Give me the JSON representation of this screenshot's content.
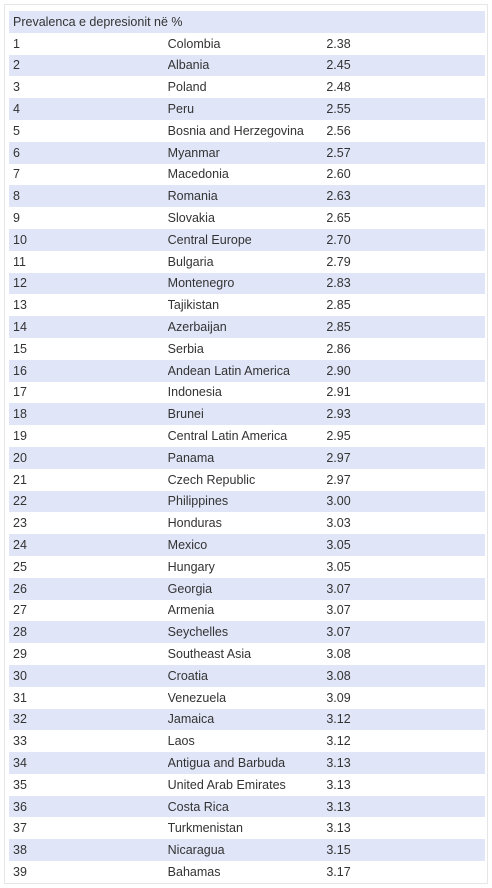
{
  "table": {
    "header": "Prevalenca e depresionit në %",
    "rows": [
      {
        "rank": "1",
        "country": "Colombia",
        "value": "2.38"
      },
      {
        "rank": "2",
        "country": "Albania",
        "value": "2.45"
      },
      {
        "rank": "3",
        "country": "Poland",
        "value": "2.48"
      },
      {
        "rank": "4",
        "country": "Peru",
        "value": "2.55"
      },
      {
        "rank": "5",
        "country": "Bosnia and Herzegovina",
        "value": "2.56"
      },
      {
        "rank": "6",
        "country": "Myanmar",
        "value": "2.57"
      },
      {
        "rank": "7",
        "country": "Macedonia",
        "value": "2.60"
      },
      {
        "rank": "8",
        "country": "Romania",
        "value": "2.63"
      },
      {
        "rank": "9",
        "country": "Slovakia",
        "value": "2.65"
      },
      {
        "rank": "10",
        "country": "Central Europe",
        "value": "2.70"
      },
      {
        "rank": "11",
        "country": "Bulgaria",
        "value": "2.79"
      },
      {
        "rank": "12",
        "country": "Montenegro",
        "value": "2.83"
      },
      {
        "rank": "13",
        "country": "Tajikistan",
        "value": "2.85"
      },
      {
        "rank": "14",
        "country": "Azerbaijan",
        "value": "2.85"
      },
      {
        "rank": "15",
        "country": "Serbia",
        "value": "2.86"
      },
      {
        "rank": "16",
        "country": "Andean Latin America",
        "value": "2.90"
      },
      {
        "rank": "17",
        "country": "Indonesia",
        "value": "2.91"
      },
      {
        "rank": "18",
        "country": "Brunei",
        "value": "2.93"
      },
      {
        "rank": "19",
        "country": "Central Latin America",
        "value": "2.95"
      },
      {
        "rank": "20",
        "country": "Panama",
        "value": "2.97"
      },
      {
        "rank": "21",
        "country": "Czech Republic",
        "value": "2.97"
      },
      {
        "rank": "22",
        "country": "Philippines",
        "value": "3.00"
      },
      {
        "rank": "23",
        "country": "Honduras",
        "value": "3.03"
      },
      {
        "rank": "24",
        "country": "Mexico",
        "value": "3.05"
      },
      {
        "rank": "25",
        "country": "Hungary",
        "value": "3.05"
      },
      {
        "rank": "26",
        "country": "Georgia",
        "value": "3.07"
      },
      {
        "rank": "27",
        "country": "Armenia",
        "value": "3.07"
      },
      {
        "rank": "28",
        "country": "Seychelles",
        "value": "3.07"
      },
      {
        "rank": "29",
        "country": "Southeast Asia",
        "value": "3.08"
      },
      {
        "rank": "30",
        "country": "Croatia",
        "value": "3.08"
      },
      {
        "rank": "31",
        "country": "Venezuela",
        "value": "3.09"
      },
      {
        "rank": "32",
        "country": "Jamaica",
        "value": "3.12"
      },
      {
        "rank": "33",
        "country": "Laos",
        "value": "3.12"
      },
      {
        "rank": "34",
        "country": "Antigua and Barbuda",
        "value": "3.13"
      },
      {
        "rank": "35",
        "country": "United Arab Emirates",
        "value": "3.13"
      },
      {
        "rank": "36",
        "country": "Costa Rica",
        "value": "3.13"
      },
      {
        "rank": "37",
        "country": "Turkmenistan",
        "value": "3.13"
      },
      {
        "rank": "38",
        "country": "Nicaragua",
        "value": "3.15"
      },
      {
        "rank": "39",
        "country": "Bahamas",
        "value": "3.17"
      }
    ]
  },
  "colors": {
    "stripe": "#e0e6f8",
    "text": "#333333",
    "background": "#ffffff"
  }
}
